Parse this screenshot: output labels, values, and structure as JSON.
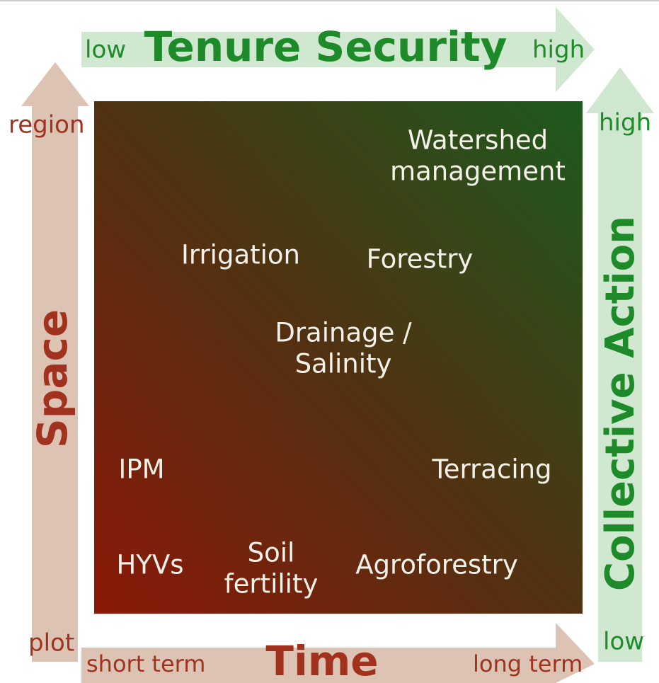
{
  "tenure": {
    "low": "low",
    "title": "Tenure Security",
    "high": "high"
  },
  "space": {
    "high": "region",
    "title": "Space",
    "low": "plot"
  },
  "time": {
    "low": "short term",
    "title": "Time",
    "high": "long term"
  },
  "collective": {
    "high": "high",
    "title": "Collective Action",
    "low": "low"
  },
  "items": [
    {
      "lines": [
        "Watershed",
        "management"
      ]
    },
    {
      "lines": [
        "Irrigation"
      ]
    },
    {
      "lines": [
        "Forestry"
      ]
    },
    {
      "lines": [
        "Drainage /",
        "Salinity"
      ]
    },
    {
      "lines": [
        "IPM"
      ]
    },
    {
      "lines": [
        "Terracing"
      ]
    },
    {
      "lines": [
        "HYVs"
      ]
    },
    {
      "lines": [
        "Soil",
        "fertility"
      ]
    },
    {
      "lines": [
        "Agroforestry"
      ]
    }
  ]
}
